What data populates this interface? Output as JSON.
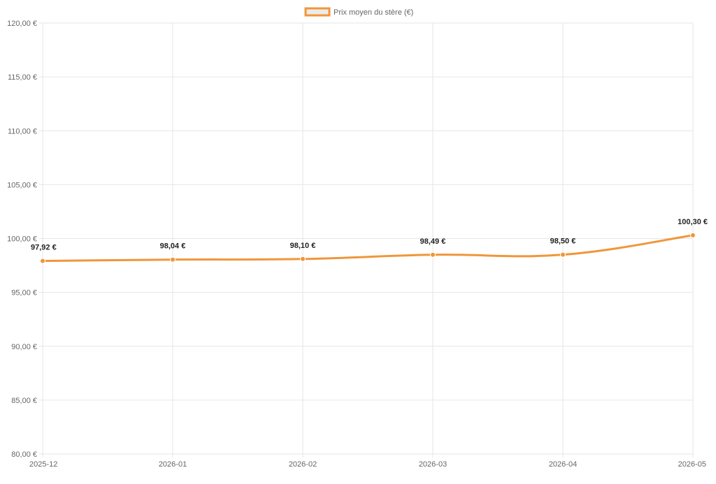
{
  "chart_data": {
    "type": "line",
    "categories": [
      "2025-12",
      "2026-01",
      "2026-02",
      "2026-03",
      "2026-04",
      "2026-05"
    ],
    "series": [
      {
        "name": "Prix moyen du stère (€)",
        "values": [
          97.92,
          98.04,
          98.1,
          98.49,
          98.5,
          100.3
        ],
        "labels": [
          "97,92 €",
          "98,04 €",
          "98,10 €",
          "98,49 €",
          "98,50 €",
          "100,30 €"
        ]
      }
    ],
    "y_ticks": [
      "120,00 €",
      "115,00 €",
      "110,00 €",
      "105,00 €",
      "100,00 €",
      "95,00 €",
      "90,00 €",
      "85,00 €",
      "80,00 €"
    ],
    "ylim": [
      80,
      120
    ],
    "grid": true,
    "legend_position": "top-center",
    "colors": {
      "line": "#f0963a",
      "legend_fill": "#ebebeb",
      "grid": "#e6e6e6"
    }
  }
}
